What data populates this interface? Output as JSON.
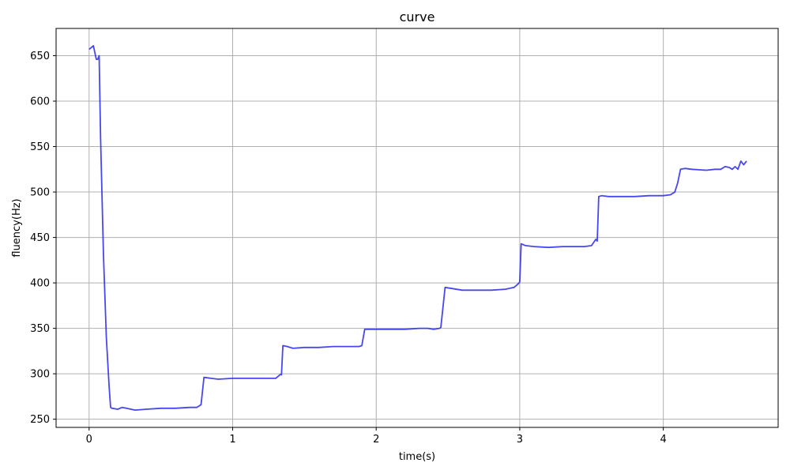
{
  "chart_data": {
    "type": "line",
    "title": "curve",
    "xlabel": "time(s)",
    "ylabel": "fluency(Hz)",
    "xlim": [
      -0.23,
      4.8
    ],
    "ylim": [
      241,
      680
    ],
    "xticks": [
      0,
      1,
      2,
      3,
      4
    ],
    "yticks": [
      250,
      300,
      350,
      400,
      450,
      500,
      550,
      600,
      650
    ],
    "grid": true,
    "series": [
      {
        "color": "#3333ee",
        "x": [
          0.0,
          0.03,
          0.05,
          0.06,
          0.07,
          0.08,
          0.1,
          0.12,
          0.14,
          0.15,
          0.16,
          0.2,
          0.23,
          0.26,
          0.32,
          0.4,
          0.5,
          0.6,
          0.7,
          0.75,
          0.78,
          0.8,
          0.85,
          0.9,
          1.0,
          1.1,
          1.2,
          1.25,
          1.3,
          1.33,
          1.34,
          1.35,
          1.38,
          1.42,
          1.5,
          1.6,
          1.7,
          1.8,
          1.88,
          1.9,
          1.92,
          1.96,
          2.0,
          2.1,
          2.2,
          2.3,
          2.36,
          2.4,
          2.44,
          2.45,
          2.48,
          2.6,
          2.7,
          2.8,
          2.9,
          2.96,
          2.99,
          3.0,
          3.01,
          3.04,
          3.1,
          3.2,
          3.3,
          3.4,
          3.45,
          3.5,
          3.53,
          3.54,
          3.55,
          3.57,
          3.62,
          3.7,
          3.8,
          3.9,
          4.0,
          4.05,
          4.08,
          4.1,
          4.12,
          4.15,
          4.2,
          4.3,
          4.36,
          4.4,
          4.43,
          4.46,
          4.48,
          4.5,
          4.52,
          4.54,
          4.56,
          4.58
        ],
        "y": [
          657,
          661,
          646,
          646,
          650,
          560,
          430,
          340,
          285,
          263,
          262,
          261,
          263,
          262,
          260,
          261,
          262,
          262,
          263,
          263,
          266,
          296,
          295,
          294,
          295,
          295,
          295,
          295,
          295,
          299,
          299,
          331,
          330,
          328,
          329,
          329,
          330,
          330,
          330,
          331,
          349,
          349,
          349,
          349,
          349,
          350,
          350,
          349,
          350,
          351,
          395,
          392,
          392,
          392,
          393,
          395,
          399,
          401,
          443,
          441,
          440,
          439,
          440,
          440,
          440,
          441,
          448,
          446,
          495,
          496,
          495,
          495,
          495,
          496,
          496,
          497,
          500,
          510,
          525,
          526,
          525,
          524,
          525,
          525,
          528,
          527,
          525,
          528,
          525,
          534,
          530,
          534
        ]
      }
    ]
  }
}
